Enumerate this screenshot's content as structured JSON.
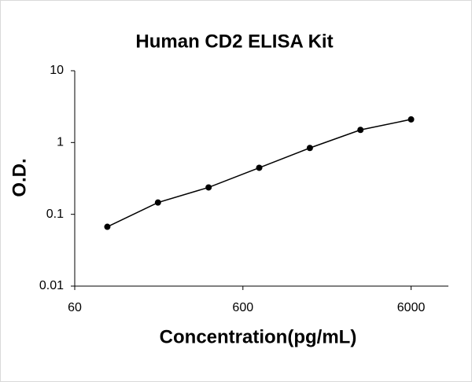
{
  "chart_data": {
    "type": "scatter",
    "title": "Human CD2 ELISA Kit",
    "x_label": "Concentration(pg/mL)",
    "y_label": "O.D.",
    "x": [
      93.75,
      187.5,
      375,
      750,
      1500,
      3000,
      6000
    ],
    "values": [
      0.067,
      0.146,
      0.237,
      0.445,
      0.84,
      1.5,
      2.1
    ],
    "color": "#000000",
    "xlim": [
      60,
      10000
    ],
    "xticks": [
      60,
      600,
      6000
    ],
    "x_log": true,
    "ylim": [
      0.01,
      10
    ],
    "yticks": [
      0.01,
      0.1,
      1,
      10
    ],
    "y_log": true
  }
}
